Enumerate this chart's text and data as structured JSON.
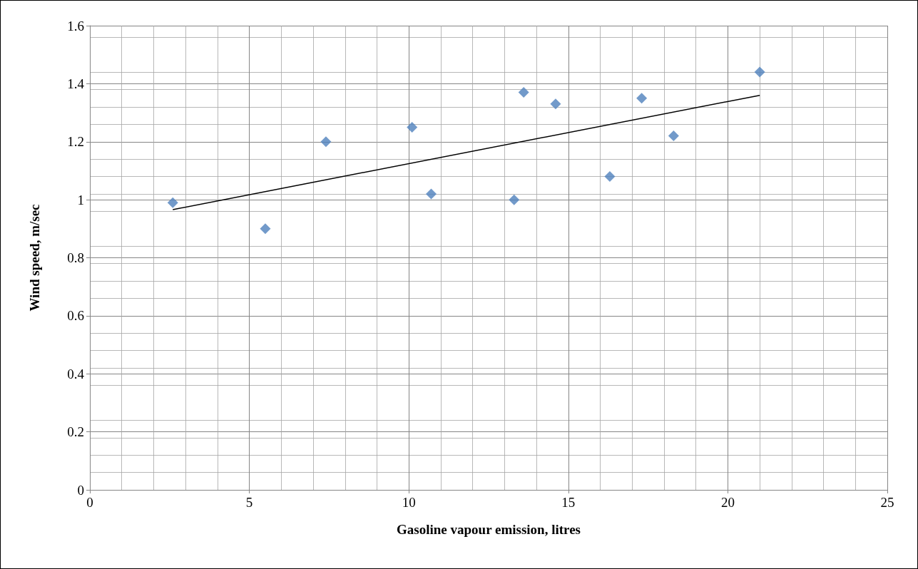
{
  "chart_data": {
    "type": "scatter",
    "xlabel": "Gasoline vapour emission, litres",
    "ylabel": "Wind speed, m/sec",
    "series": [
      {
        "color": "#4f81bd",
        "marker": "diamond",
        "x": [
          2.6,
          5.5,
          7.4,
          10.1,
          10.7,
          13.3,
          13.6,
          14.6,
          16.3,
          17.3,
          18.3,
          21.0
        ],
        "values": [
          0.99,
          0.9,
          1.2,
          1.25,
          1.02,
          1.0,
          1.37,
          1.33,
          1.08,
          1.35,
          1.22,
          1.44
        ]
      },
      {
        "type": "line",
        "marker": "none",
        "color": "#000000",
        "x": [
          2.6,
          21.0
        ],
        "values": [
          0.966,
          1.36
        ]
      }
    ],
    "xlim": [
      0,
      25
    ],
    "xticks": [
      0,
      5,
      10,
      15,
      20,
      25
    ],
    "ylim": [
      0,
      1.6
    ],
    "yticks": [
      0,
      0.2,
      0.4,
      0.6,
      0.8,
      1,
      1.2,
      1.4,
      1.6
    ],
    "grid": true
  }
}
